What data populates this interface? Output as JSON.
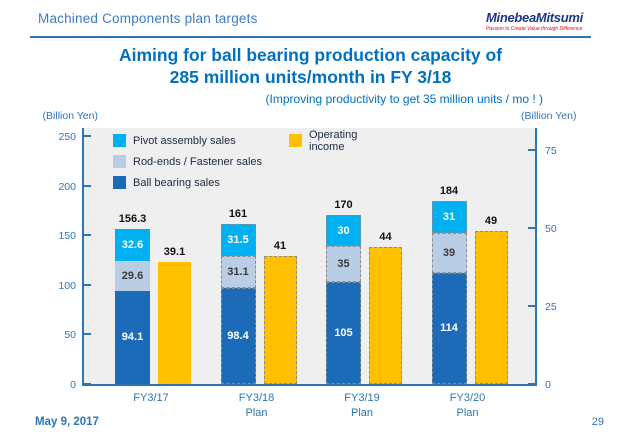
{
  "header": {
    "title": "Machined Components plan targets"
  },
  "logo": {
    "name": "MinebeaMitsumi",
    "tagline": "Passion to Create Value through Difference"
  },
  "title": {
    "line1": "Aiming for ball bearing production capacity of",
    "line2": "285 million units/month in FY 3/18",
    "subtitle": "(Improving productivity to get 35 million units / mo ! )"
  },
  "legend": [
    {
      "label": "Pivot assembly sales",
      "color": "#00b0f0"
    },
    {
      "label": "Rod-ends / Fastener sales",
      "color": "#b9cde5"
    },
    {
      "label": "Ball bearing sales",
      "color": "#1c6bb8"
    },
    {
      "label": "Operating income",
      "color": "#ffc000"
    }
  ],
  "chart_data": {
    "type": "bar",
    "subtype": "stacked-plus-secondary-axis-bar",
    "categories": [
      {
        "label": "FY3/17",
        "sublabel": "",
        "plan": false
      },
      {
        "label": "FY3/18",
        "sublabel": "Plan",
        "plan": true
      },
      {
        "label": "FY3/19",
        "sublabel": "Plan",
        "plan": true
      },
      {
        "label": "FY3/20",
        "sublabel": "Plan",
        "plan": true
      }
    ],
    "series": [
      {
        "name": "Ball bearing sales",
        "axis": "left",
        "color": "#1c6bb8",
        "label_color": "#ffffff",
        "values": [
          94.1,
          98.4,
          105,
          114
        ]
      },
      {
        "name": "Rod-ends / Fastener sales",
        "axis": "left",
        "color": "#b9cde5",
        "label_color": "#3a3a3a",
        "values": [
          29.6,
          31.1,
          35,
          39
        ]
      },
      {
        "name": "Pivot assembly sales",
        "axis": "left",
        "color": "#00b0f0",
        "label_color": "#ffffff",
        "values": [
          32.6,
          31.5,
          30,
          31
        ]
      },
      {
        "name": "Operating income",
        "axis": "right",
        "color": "#ffc000",
        "values": [
          39.1,
          41,
          44,
          49
        ]
      }
    ],
    "stack_totals": [
      156.3,
      161,
      170,
      184
    ],
    "left_axis": {
      "caption": "(Billion Yen)",
      "ticks": [
        0,
        50,
        100,
        150,
        200,
        250
      ],
      "max": 260
    },
    "right_axis": {
      "caption": "(Billion Yen)",
      "ticks": [
        0,
        25,
        50,
        75
      ],
      "max": 82.6
    },
    "grid": false,
    "legend_position": "top-left-inside",
    "plot_background": "#efefef",
    "axis_color": "#2e75b6"
  },
  "footer": {
    "date": "May 9, 2017",
    "page": "29"
  }
}
